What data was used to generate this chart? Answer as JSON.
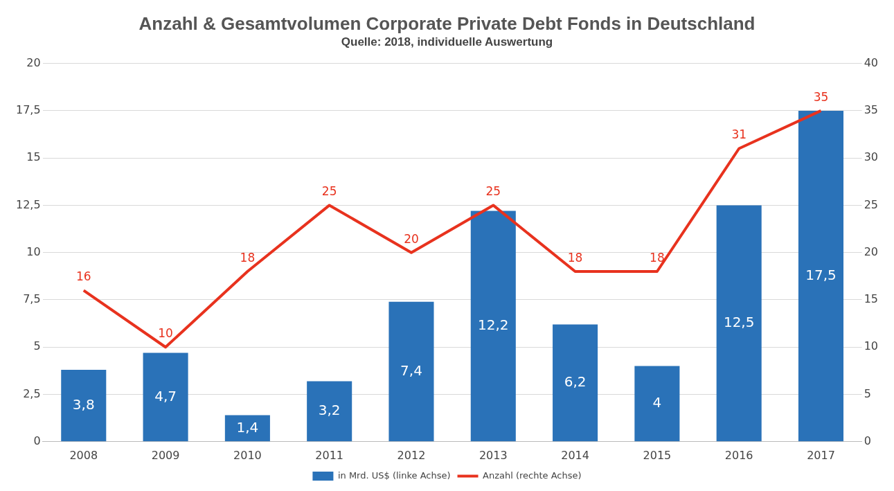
{
  "chart_data": {
    "type": "bar",
    "title": "Anzahl & Gesamtvolumen Corporate Private Debt Fonds in Deutschland",
    "subtitle": "Quelle: 2018, individuelle Auswertung",
    "categories": [
      "2008",
      "2009",
      "2010",
      "2011",
      "2012",
      "2013",
      "2014",
      "2015",
      "2016",
      "2017"
    ],
    "series": [
      {
        "name": "in Mrd. US$ (linke Achse)",
        "color": "#2a72b8",
        "values": [
          3.8,
          4.7,
          1.4,
          3.2,
          7.4,
          12.2,
          6.2,
          4,
          12.5,
          17.5
        ],
        "value_labels": [
          "3,8",
          "4,7",
          "1,4",
          "3,2",
          "7,4",
          "12,2",
          "6,2",
          "4",
          "12,5",
          "17,5"
        ]
      },
      {
        "name": "Anzahl (rechte Achse)",
        "type": "line",
        "axis": "y2",
        "color": "#e8321e",
        "values": [
          16,
          10,
          18,
          25,
          20,
          25,
          18,
          18,
          31,
          35
        ],
        "value_labels": [
          "16",
          "10",
          "18",
          "25",
          "20",
          "25",
          "18",
          "18",
          "31",
          "35"
        ]
      }
    ],
    "ylim": [
      0,
      20
    ],
    "yticks": [
      0,
      {
        "value": 2.5,
        "label": "2,5"
      },
      5,
      {
        "value": 7.5,
        "label": "7,5"
      },
      10,
      {
        "value": 12.5,
        "label": "12,5"
      },
      15,
      {
        "value": 17.5,
        "label": "17,5"
      },
      20
    ],
    "y2lim": [
      0,
      40
    ],
    "y2ticks": [
      0,
      5,
      10,
      15,
      20,
      25,
      30,
      35,
      40
    ],
    "grid": "y",
    "legend": "bottom",
    "marker": "none",
    "line_style": "solid"
  }
}
